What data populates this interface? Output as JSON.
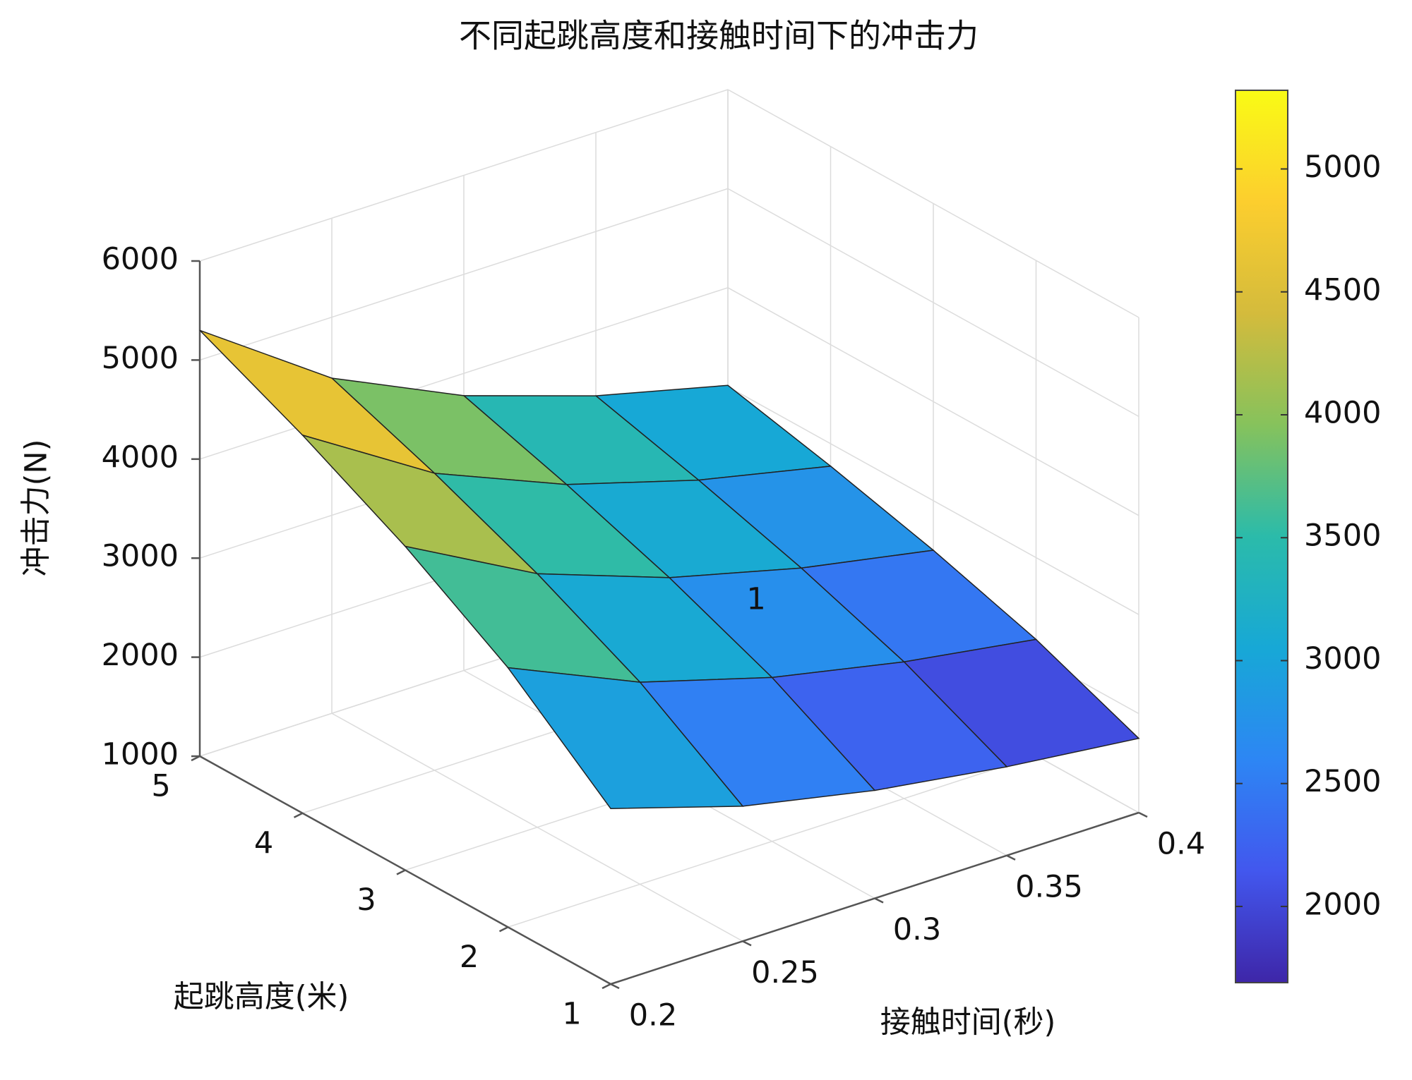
{
  "chart_data": {
    "type": "surface",
    "title": "不同起跳高度和接触时间下的冲击力",
    "xlabel": "接触时间(秒)",
    "ylabel": "起跳高度(米)",
    "zlabel": "冲击力(N)",
    "x": [
      0.2,
      0.25,
      0.3,
      0.35,
      0.4
    ],
    "y": [
      1,
      2,
      3,
      4,
      5
    ],
    "z": [
      [
        2772,
        2363,
        2090,
        1896,
        1750
      ],
      [
        3619,
        3040,
        2655,
        2380,
        2174
      ],
      [
        4269,
        3560,
        3088,
        2752,
        2499
      ],
      [
        4817,
        3999,
        3453,
        3065,
        2773
      ],
      [
        5300,
        4385,
        3775,
        3341,
        3014
      ]
    ],
    "xlim": [
      0.2,
      0.4
    ],
    "xticks": [
      0.2,
      0.25,
      0.3,
      0.35,
      0.4
    ],
    "ylim": [
      1,
      5
    ],
    "yticks": [
      1,
      2,
      3,
      4,
      5
    ],
    "zlim": [
      1000,
      6000
    ],
    "zticks": [
      1000,
      2000,
      3000,
      4000,
      5000,
      6000
    ],
    "grid": true,
    "colorbar": {
      "clim": [
        1690,
        5320
      ],
      "ticks": [
        2000,
        2500,
        3000,
        3500,
        4000,
        4500,
        5000
      ]
    },
    "colormap": [
      "#3e26a8",
      "#4257ee",
      "#2d86f4",
      "#17a8d6",
      "#2bbbaa",
      "#86c25c",
      "#d4bb3c",
      "#fcce2e",
      "#f9fb15"
    ],
    "annotations": [
      {
        "text": "1"
      }
    ]
  }
}
